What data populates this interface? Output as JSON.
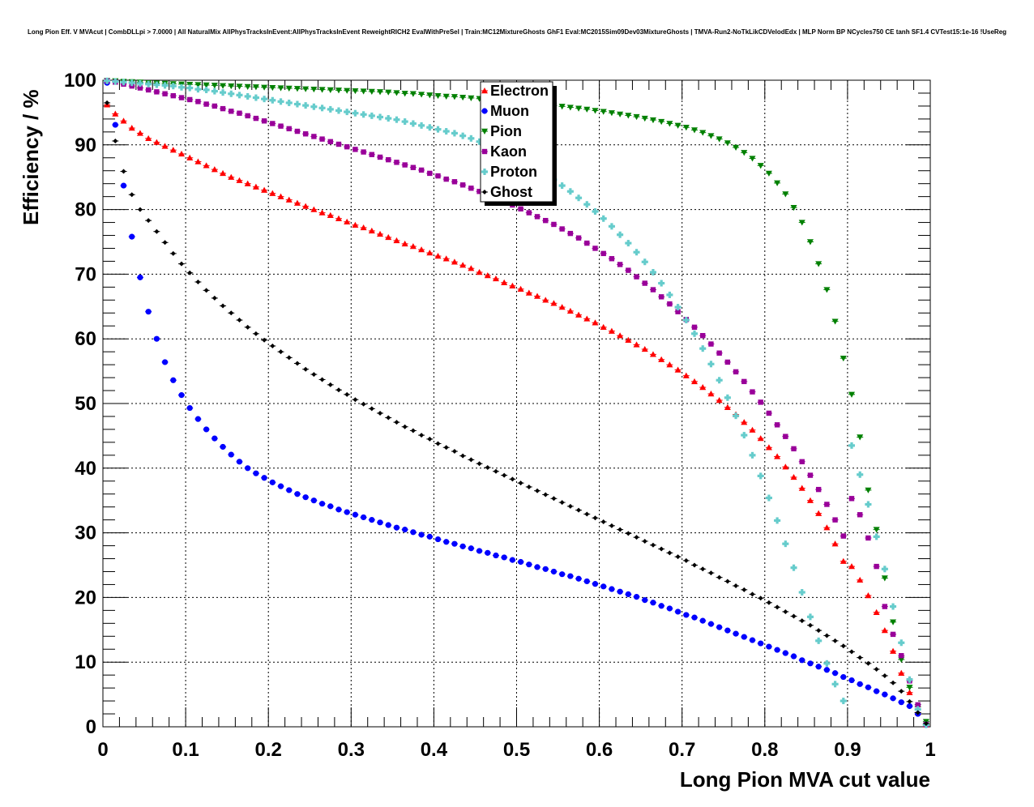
{
  "chart_data": {
    "type": "scatter",
    "title": "Long Pion Eff. V MVAcut | CombDLLpi > 7.0000 | All NaturalMix AllPhysTracksInEvent:AllPhysTracksInEvent ReweightRICH2 EvalWithPreSel | Train:MC12MixtureGhosts GhF1 Eval:MC2015Sim09Dev03MixtureGhosts | TMVA-Run2-NoTkLikCDVelodEdx | MLP Norm BP NCycles750 CE tanh SF1.4 CVTest15:1e-16 !UseReg",
    "xlabel": "Long Pion MVA cut value",
    "ylabel": "Efficiency / %",
    "xlim": [
      0,
      1
    ],
    "ylim": [
      0,
      100
    ],
    "x_ticks": [
      "0",
      "0.1",
      "0.2",
      "0.3",
      "0.4",
      "0.5",
      "0.6",
      "0.7",
      "0.8",
      "0.9",
      "1"
    ],
    "y_ticks": [
      "0",
      "10",
      "20",
      "30",
      "40",
      "50",
      "60",
      "70",
      "80",
      "90",
      "100"
    ],
    "grid": true,
    "legend_position": "top-center",
    "x": [
      0.005,
      0.015,
      0.025,
      0.035,
      0.045,
      0.055,
      0.065,
      0.075,
      0.085,
      0.095,
      0.105,
      0.115,
      0.125,
      0.135,
      0.145,
      0.155,
      0.165,
      0.175,
      0.185,
      0.195,
      0.205,
      0.215,
      0.225,
      0.235,
      0.245,
      0.255,
      0.265,
      0.275,
      0.285,
      0.295,
      0.305,
      0.315,
      0.325,
      0.335,
      0.345,
      0.355,
      0.365,
      0.375,
      0.385,
      0.395,
      0.405,
      0.415,
      0.425,
      0.435,
      0.445,
      0.455,
      0.465,
      0.475,
      0.485,
      0.495,
      0.505,
      0.515,
      0.525,
      0.535,
      0.545,
      0.555,
      0.565,
      0.575,
      0.585,
      0.595,
      0.605,
      0.615,
      0.625,
      0.635,
      0.645,
      0.655,
      0.665,
      0.675,
      0.685,
      0.695,
      0.705,
      0.715,
      0.725,
      0.735,
      0.745,
      0.755,
      0.765,
      0.775,
      0.785,
      0.795,
      0.805,
      0.815,
      0.825,
      0.835,
      0.845,
      0.855,
      0.865,
      0.875,
      0.885,
      0.895,
      0.905,
      0.915,
      0.925,
      0.935,
      0.945,
      0.955,
      0.965,
      0.975,
      0.985,
      0.995
    ],
    "series": [
      {
        "name": "Electron",
        "color": "#ff0000",
        "marker": "triangle-up",
        "values": [
          96.2,
          94.8,
          93.7,
          92.6,
          91.8,
          91.0,
          90.4,
          89.8,
          89.2,
          88.6,
          88.0,
          87.4,
          86.8,
          86.2,
          85.6,
          85.0,
          84.5,
          84.0,
          83.5,
          83.0,
          82.5,
          82.0,
          81.5,
          81.0,
          80.5,
          80.0,
          79.5,
          79.1,
          78.6,
          78.1,
          77.6,
          77.2,
          76.7,
          76.2,
          75.7,
          75.2,
          74.7,
          74.3,
          73.8,
          73.3,
          72.8,
          72.4,
          71.9,
          71.4,
          70.9,
          70.3,
          69.8,
          69.3,
          68.7,
          68.2,
          67.7,
          67.1,
          66.6,
          66.0,
          65.5,
          64.9,
          64.3,
          63.7,
          63.1,
          62.5,
          61.8,
          61.2,
          60.5,
          59.8,
          59.1,
          58.4,
          57.6,
          56.8,
          56.0,
          55.2,
          54.3,
          53.4,
          52.5,
          51.5,
          50.5,
          49.4,
          48.3,
          47.1,
          45.9,
          44.6,
          43.2,
          41.8,
          40.2,
          38.6,
          36.9,
          35.0,
          33.0,
          30.8,
          28.3,
          25.6,
          24.8,
          22.7,
          20.3,
          17.7,
          14.9,
          11.7,
          8.3,
          5.3,
          2.2,
          0.3
        ]
      },
      {
        "name": "Muon",
        "color": "#0000ff",
        "marker": "circle",
        "values": [
          99.6,
          93.1,
          83.7,
          75.8,
          69.5,
          64.2,
          60.0,
          56.4,
          53.6,
          51.3,
          49.3,
          47.6,
          46.0,
          44.6,
          43.3,
          42.1,
          41.0,
          40.0,
          39.2,
          38.5,
          37.8,
          37.2,
          36.6,
          36.0,
          35.5,
          35.0,
          34.5,
          34.1,
          33.6,
          33.2,
          32.8,
          32.4,
          32.0,
          31.6,
          31.2,
          30.8,
          30.5,
          30.1,
          29.7,
          29.4,
          29.0,
          28.6,
          28.3,
          27.9,
          27.6,
          27.2,
          26.9,
          26.5,
          26.2,
          25.8,
          25.5,
          25.1,
          24.7,
          24.4,
          24.0,
          23.6,
          23.3,
          22.9,
          22.5,
          22.1,
          21.7,
          21.3,
          20.9,
          20.5,
          20.1,
          19.6,
          19.2,
          18.7,
          18.3,
          17.8,
          17.3,
          16.9,
          16.4,
          15.9,
          15.4,
          14.9,
          14.4,
          13.9,
          13.4,
          12.9,
          12.4,
          11.9,
          11.4,
          10.9,
          10.3,
          9.8,
          9.3,
          8.8,
          8.3,
          7.7,
          7.2,
          6.6,
          6.1,
          5.5,
          5.0,
          4.4,
          3.8,
          3.2,
          2.0,
          0.3
        ]
      },
      {
        "name": "Pion",
        "color": "#008000",
        "marker": "triangle-down",
        "values": [
          99.95,
          99.9,
          99.8,
          99.75,
          99.7,
          99.6,
          99.55,
          99.5,
          99.45,
          99.4,
          99.35,
          99.3,
          99.25,
          99.2,
          99.15,
          99.1,
          99.05,
          99.0,
          98.95,
          98.9,
          98.85,
          98.8,
          98.75,
          98.7,
          98.65,
          98.6,
          98.55,
          98.5,
          98.45,
          98.4,
          98.35,
          98.3,
          98.25,
          98.2,
          98.15,
          98.05,
          97.95,
          97.9,
          97.8,
          97.7,
          97.6,
          97.5,
          97.45,
          97.35,
          97.25,
          97.15,
          97.05,
          96.95,
          96.8,
          96.7,
          96.6,
          96.5,
          96.35,
          96.2,
          96.1,
          95.95,
          95.8,
          95.65,
          95.5,
          95.3,
          95.15,
          94.95,
          94.75,
          94.55,
          94.35,
          94.1,
          93.85,
          93.6,
          93.3,
          93.0,
          92.7,
          92.3,
          91.9,
          91.4,
          90.9,
          90.3,
          89.6,
          88.8,
          87.9,
          86.8,
          85.6,
          84.1,
          82.4,
          80.3,
          78.0,
          75.0,
          71.6,
          67.6,
          62.7,
          57.0,
          51.4,
          44.8,
          36.6,
          30.5,
          23.0,
          16.2,
          10.4,
          6.1,
          3.1,
          0.8
        ]
      },
      {
        "name": "Kaon",
        "color": "#990099",
        "marker": "square",
        "values": [
          99.9,
          99.7,
          99.4,
          99.1,
          98.8,
          98.5,
          98.2,
          97.9,
          97.6,
          97.3,
          97.0,
          96.7,
          96.3,
          96.0,
          95.6,
          95.2,
          94.9,
          94.5,
          94.1,
          93.7,
          93.3,
          92.9,
          92.5,
          92.1,
          91.7,
          91.3,
          90.9,
          90.5,
          90.1,
          89.7,
          89.3,
          88.9,
          88.5,
          88.1,
          87.7,
          87.3,
          86.9,
          86.5,
          86.1,
          85.6,
          85.2,
          84.7,
          84.3,
          83.8,
          83.3,
          82.8,
          82.3,
          81.8,
          81.2,
          80.7,
          80.1,
          79.5,
          78.9,
          78.3,
          77.7,
          77.0,
          76.3,
          75.6,
          74.8,
          74.0,
          73.2,
          72.4,
          71.5,
          70.6,
          69.6,
          68.6,
          67.6,
          66.5,
          65.4,
          64.2,
          63.0,
          61.8,
          60.5,
          59.2,
          57.8,
          56.4,
          54.9,
          53.4,
          51.8,
          50.2,
          48.5,
          46.7,
          44.9,
          43.0,
          41.0,
          38.9,
          36.7,
          34.4,
          32.0,
          29.5,
          35.3,
          32.8,
          29.2,
          24.8,
          18.6,
          14.3,
          11.0,
          7.1,
          3.4,
          0.4
        ]
      },
      {
        "name": "Proton",
        "color": "#66cccc",
        "marker": "cross",
        "values": [
          99.9,
          99.8,
          99.7,
          99.6,
          99.5,
          99.4,
          99.3,
          99.2,
          99.1,
          98.9,
          98.8,
          98.6,
          98.5,
          98.3,
          98.1,
          97.9,
          97.7,
          97.5,
          97.3,
          97.1,
          96.9,
          96.7,
          96.5,
          96.3,
          96.1,
          95.9,
          95.7,
          95.5,
          95.3,
          95.1,
          94.9,
          94.7,
          94.5,
          94.3,
          94.1,
          93.9,
          93.6,
          93.3,
          93.0,
          92.7,
          92.4,
          92.1,
          91.8,
          91.4,
          91.0,
          90.5,
          90.0,
          89.4,
          88.8,
          88.2,
          87.6,
          86.9,
          86.2,
          85.4,
          84.6,
          83.7,
          82.8,
          81.8,
          80.8,
          79.7,
          78.6,
          77.4,
          76.1,
          74.8,
          73.4,
          71.9,
          70.3,
          68.6,
          66.8,
          64.9,
          62.9,
          60.8,
          58.5,
          56.1,
          53.6,
          50.9,
          48.1,
          45.1,
          42.0,
          38.8,
          35.4,
          31.9,
          28.3,
          24.6,
          20.8,
          17.0,
          13.3,
          9.8,
          6.6,
          4.0,
          43.5,
          39.0,
          34.4,
          29.4,
          24.4,
          18.6,
          13.0,
          7.3,
          2.7,
          0.3
        ]
      },
      {
        "name": "Ghost",
        "color": "#000000",
        "marker": "star",
        "values": [
          96.5,
          90.6,
          85.9,
          82.3,
          80.0,
          78.3,
          76.6,
          74.9,
          73.2,
          71.6,
          70.2,
          68.8,
          67.5,
          66.3,
          65.1,
          64.0,
          62.9,
          61.8,
          60.8,
          59.8,
          58.9,
          58.0,
          57.1,
          56.2,
          55.3,
          54.5,
          53.7,
          52.9,
          52.1,
          51.4,
          50.6,
          49.9,
          49.2,
          48.5,
          47.8,
          47.1,
          46.4,
          45.8,
          45.1,
          44.5,
          43.8,
          43.2,
          42.6,
          41.9,
          41.3,
          40.7,
          40.1,
          39.5,
          38.9,
          38.3,
          37.7,
          37.1,
          36.5,
          35.9,
          35.3,
          34.7,
          34.1,
          33.5,
          32.9,
          32.3,
          31.7,
          31.1,
          30.5,
          29.9,
          29.3,
          28.7,
          28.1,
          27.5,
          26.9,
          26.3,
          25.7,
          25.0,
          24.4,
          23.8,
          23.1,
          22.5,
          21.8,
          21.2,
          20.5,
          19.9,
          19.2,
          18.5,
          17.8,
          17.1,
          16.4,
          15.7,
          14.9,
          14.1,
          13.3,
          12.5,
          11.6,
          10.7,
          9.8,
          8.9,
          7.9,
          6.8,
          5.5,
          3.9,
          2.2,
          0.5
        ]
      }
    ]
  }
}
